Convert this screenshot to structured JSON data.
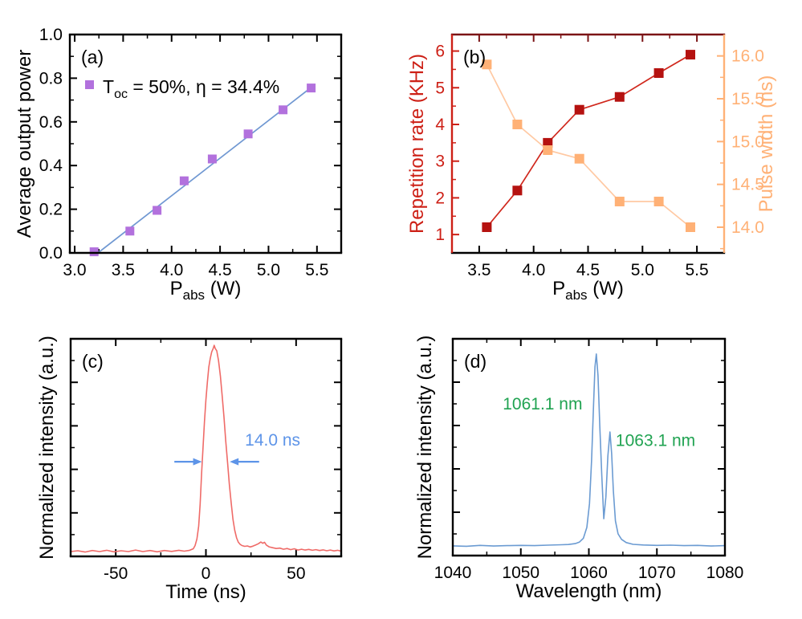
{
  "figure": {
    "background": "#ffffff",
    "description_colors": {
      "purple_marker": "#b271dd",
      "fit_line_blue": "#7098d2",
      "rep_rate_red_line": "#d0271c",
      "rep_rate_red_marker": "#b51210",
      "rep_rate_axis_red": "#cd2016",
      "dark_red_top_spine": "#7b1416",
      "pulse_width_orange_marker": "#ffb176",
      "pulse_width_orange_line": "#ffc9a3",
      "pulse_trace_red": "#ef6b68",
      "spectrum_blue": "#6b9bd2",
      "annotation_blue": "#5d94e8",
      "annotation_green": "#21a352",
      "black": "#000000"
    }
  },
  "chart_data": [
    {
      "id": "a",
      "type": "scatter",
      "panel_label": "(a)",
      "xlabel": {
        "pre": "P",
        "sub": "abs",
        "post": " (W)"
      },
      "ylabel": "Average output power",
      "xlim": [
        2.95,
        5.75
      ],
      "ylim": [
        0.0,
        1.0
      ],
      "xticks": {
        "major": [
          3.0,
          3.5,
          4.0,
          4.5,
          5.0,
          5.5
        ],
        "labels": [
          "3.0",
          "3.5",
          "4.0",
          "4.5",
          "5.0",
          "5.5"
        ],
        "minor": [
          3.25,
          3.75,
          4.25,
          4.75,
          5.25
        ]
      },
      "yticks": {
        "major": [
          0.0,
          0.2,
          0.4,
          0.6,
          0.8,
          1.0
        ],
        "labels": [
          "0.0",
          "0.2",
          "0.4",
          "0.6",
          "0.8",
          "1.0"
        ],
        "minor": [
          0.1,
          0.3,
          0.5,
          0.7,
          0.9
        ]
      },
      "axis_colors": {
        "top": "#000000",
        "bottom": "#000000",
        "left": "#000000",
        "right": "#000000"
      },
      "legend": {
        "pre": "T",
        "sub": "oc",
        "post": " = 50%, η = 34.4%",
        "marker_color": "#b271dd"
      },
      "series": [
        {
          "name": "linear-fit-line",
          "kind": "line",
          "color": "#7098d2",
          "width": 1.7,
          "points": [
            [
              3.24,
              0.0
            ],
            [
              5.47,
              0.768
            ]
          ]
        },
        {
          "name": "output-power-points",
          "kind": "scatter",
          "marker": "square",
          "size": 11,
          "color": "#b271dd",
          "points": [
            [
              3.2,
              0.005
            ],
            [
              3.57,
              0.1
            ],
            [
              3.85,
              0.195
            ],
            [
              4.13,
              0.33
            ],
            [
              4.42,
              0.43
            ],
            [
              4.79,
              0.545
            ],
            [
              5.15,
              0.655
            ],
            [
              5.44,
              0.755
            ]
          ]
        }
      ]
    },
    {
      "id": "b",
      "type": "line",
      "panel_label": "(b)",
      "xlabel": {
        "pre": "P",
        "sub": "abs",
        "post": " (W)"
      },
      "ylabel": "Repetition rate (KHz)",
      "ylabel2": "Pulse width (ns)",
      "xlim": [
        3.25,
        5.75
      ],
      "ylim": [
        0.5,
        6.45
      ],
      "y2lim": [
        13.7,
        16.25
      ],
      "xticks": {
        "major": [
          3.5,
          4.0,
          4.5,
          5.0,
          5.5
        ],
        "labels": [
          "3.5",
          "4.0",
          "4.5",
          "5.0",
          "5.5"
        ],
        "minor": [
          3.75,
          4.25,
          4.75,
          5.25
        ]
      },
      "yticks": {
        "major": [
          1,
          2,
          3,
          4,
          5,
          6
        ],
        "labels": [
          "1",
          "2",
          "3",
          "4",
          "5",
          "6"
        ],
        "minor": [
          1.5,
          2.5,
          3.5,
          4.5,
          5.5
        ]
      },
      "y2ticks": {
        "major": [
          14.0,
          14.5,
          15.0,
          15.5,
          16.0
        ],
        "labels": [
          "14.0",
          "14.5",
          "15.0",
          "15.5",
          "16.0"
        ],
        "minor": [
          13.75,
          14.25,
          14.75,
          15.25,
          15.75
        ]
      },
      "axis_colors": {
        "top": "#7b1416",
        "bottom": "#000000",
        "left": "#cd2016",
        "right": "#ffb176"
      },
      "series": [
        {
          "name": "repetition-rate-series",
          "kind": "line+scatter",
          "axis": "left",
          "color": "#d0271c",
          "marker_color": "#b51210",
          "size": 12,
          "width": 1.7,
          "points": [
            [
              3.57,
              1.2
            ],
            [
              3.85,
              2.2
            ],
            [
              4.13,
              3.5
            ],
            [
              4.42,
              4.4
            ],
            [
              4.79,
              4.75
            ],
            [
              5.15,
              5.4
            ],
            [
              5.44,
              5.9
            ]
          ]
        },
        {
          "name": "pulse-width-series",
          "kind": "line+scatter",
          "axis": "right",
          "color": "#ffc9a3",
          "marker_color": "#ffb176",
          "size": 12,
          "width": 1.7,
          "points": [
            [
              3.57,
              15.9
            ],
            [
              3.85,
              15.2
            ],
            [
              4.13,
              14.9
            ],
            [
              4.42,
              14.8
            ],
            [
              4.79,
              14.3
            ],
            [
              5.15,
              14.3
            ],
            [
              5.44,
              14.0
            ]
          ]
        }
      ]
    },
    {
      "id": "c",
      "type": "line",
      "panel_label": "(c)",
      "xlabel": {
        "pre": "Time (ns)",
        "sub": "",
        "post": ""
      },
      "ylabel": "Normalized intensity (a.u.)",
      "xlim": [
        -75,
        75
      ],
      "ylim": [
        0.0,
        1.0
      ],
      "xticks": {
        "major": [
          -50,
          0,
          50
        ],
        "labels": [
          "-50",
          "0",
          "50"
        ],
        "minor": [
          -25,
          25
        ]
      },
      "yticks": {
        "major": [
          0.2,
          0.4,
          0.6,
          0.8
        ],
        "labels": [],
        "minor": [
          0.1,
          0.3,
          0.5,
          0.7,
          0.9
        ]
      },
      "axis_colors": {
        "top": "#000000",
        "bottom": "#000000",
        "left": "#000000",
        "right": "#000000"
      },
      "series": [
        {
          "name": "pulse-trace",
          "kind": "line",
          "color": "#ef6b68",
          "width": 1.6,
          "points": [
            [
              -75,
              0.022
            ],
            [
              -71,
              0.026
            ],
            [
              -67,
              0.02
            ],
            [
              -63,
              0.027
            ],
            [
              -59,
              0.022
            ],
            [
              -55,
              0.028
            ],
            [
              -51,
              0.021
            ],
            [
              -47,
              0.026
            ],
            [
              -43,
              0.022
            ],
            [
              -39,
              0.029
            ],
            [
              -35,
              0.022
            ],
            [
              -31,
              0.027
            ],
            [
              -27,
              0.021
            ],
            [
              -23,
              0.027
            ],
            [
              -19,
              0.023
            ],
            [
              -15,
              0.028
            ],
            [
              -12,
              0.024
            ],
            [
              -9,
              0.028
            ],
            [
              -7,
              0.035
            ],
            [
              -6,
              0.05
            ],
            [
              -5,
              0.08
            ],
            [
              -4,
              0.14
            ],
            [
              -3.2,
              0.24
            ],
            [
              -2.4,
              0.38
            ],
            [
              -1.6,
              0.5
            ],
            [
              -0.8,
              0.62
            ],
            [
              0,
              0.72
            ],
            [
              0.8,
              0.8
            ],
            [
              1.6,
              0.87
            ],
            [
              2.4,
              0.91
            ],
            [
              3.2,
              0.94
            ],
            [
              4,
              0.955
            ],
            [
              4.6,
              0.97
            ],
            [
              5.2,
              0.955
            ],
            [
              6,
              0.945
            ],
            [
              7,
              0.9
            ],
            [
              8,
              0.83
            ],
            [
              9,
              0.74
            ],
            [
              10,
              0.64
            ],
            [
              11,
              0.53
            ],
            [
              12,
              0.43
            ],
            [
              13,
              0.33
            ],
            [
              14,
              0.245
            ],
            [
              15,
              0.17
            ],
            [
              16,
              0.12
            ],
            [
              17,
              0.085
            ],
            [
              18,
              0.065
            ],
            [
              19,
              0.055
            ],
            [
              20,
              0.05
            ],
            [
              21.5,
              0.046
            ],
            [
              23,
              0.048
            ],
            [
              24.5,
              0.043
            ],
            [
              26,
              0.047
            ],
            [
              27.5,
              0.052
            ],
            [
              29,
              0.058
            ],
            [
              30.5,
              0.066
            ],
            [
              31.5,
              0.06
            ],
            [
              32.5,
              0.065
            ],
            [
              33.5,
              0.052
            ],
            [
              35,
              0.044
            ],
            [
              37,
              0.04
            ],
            [
              39,
              0.036
            ],
            [
              41,
              0.038
            ],
            [
              43,
              0.033
            ],
            [
              45,
              0.036
            ],
            [
              47,
              0.031
            ],
            [
              49,
              0.035
            ],
            [
              51,
              0.029
            ],
            [
              53,
              0.033
            ],
            [
              55,
              0.029
            ],
            [
              57,
              0.032
            ],
            [
              59,
              0.028
            ],
            [
              61,
              0.031
            ],
            [
              63,
              0.027
            ],
            [
              65,
              0.03
            ],
            [
              67,
              0.026
            ],
            [
              69,
              0.029
            ],
            [
              71,
              0.025
            ],
            [
              73,
              0.028
            ],
            [
              75,
              0.024
            ]
          ]
        }
      ],
      "annotations": [
        {
          "kind": "text",
          "name": "annotation-pulse-width",
          "text": "14.0 ns",
          "x": 37,
          "y": 0.51,
          "color": "#5d94e8"
        },
        {
          "kind": "arrow",
          "name": "annotation-arrow-left",
          "x1": -17.5,
          "x2": -2.2,
          "y": 0.435,
          "color": "#5d94e8"
        },
        {
          "kind": "arrow",
          "name": "annotation-arrow-right",
          "x1": 29.5,
          "x2": 13.2,
          "y": 0.435,
          "color": "#5d94e8"
        }
      ]
    },
    {
      "id": "d",
      "type": "line",
      "panel_label": "(d)",
      "xlabel": {
        "pre": "Wavelength (nm)",
        "sub": "",
        "post": ""
      },
      "ylabel": "Normalized intensity (a.u.)",
      "xlim": [
        1040,
        1080
      ],
      "ylim": [
        0.0,
        1.0
      ],
      "xticks": {
        "major": [
          1040,
          1050,
          1060,
          1070,
          1080
        ],
        "labels": [
          "1040",
          "1050",
          "1060",
          "1070",
          "1080"
        ],
        "minor": [
          1045,
          1055,
          1065,
          1075
        ]
      },
      "yticks": {
        "major": [
          0.2,
          0.4,
          0.6,
          0.8
        ],
        "labels": [],
        "minor": [
          0.1,
          0.3,
          0.5,
          0.7,
          0.9
        ]
      },
      "axis_colors": {
        "top": "#000000",
        "bottom": "#000000",
        "left": "#000000",
        "right": "#000000"
      },
      "series": [
        {
          "name": "spectrum-trace",
          "kind": "line",
          "color": "#6b9bd2",
          "width": 1.6,
          "points": [
            [
              1040,
              0.045
            ],
            [
              1042,
              0.043
            ],
            [
              1044,
              0.047
            ],
            [
              1046,
              0.044
            ],
            [
              1048,
              0.046
            ],
            [
              1050,
              0.047
            ],
            [
              1052,
              0.046
            ],
            [
              1054,
              0.048
            ],
            [
              1056,
              0.05
            ],
            [
              1057,
              0.051
            ],
            [
              1058,
              0.055
            ],
            [
              1058.6,
              0.062
            ],
            [
              1059.2,
              0.08
            ],
            [
              1059.7,
              0.13
            ],
            [
              1060.1,
              0.24
            ],
            [
              1060.4,
              0.44
            ],
            [
              1060.7,
              0.7
            ],
            [
              1060.9,
              0.87
            ],
            [
              1061.1,
              0.93
            ],
            [
              1061.35,
              0.83
            ],
            [
              1061.6,
              0.6
            ],
            [
              1061.9,
              0.37
            ],
            [
              1062.2,
              0.17
            ],
            [
              1062.5,
              0.27
            ],
            [
              1062.8,
              0.46
            ],
            [
              1063.1,
              0.57
            ],
            [
              1063.35,
              0.47
            ],
            [
              1063.6,
              0.3
            ],
            [
              1063.9,
              0.16
            ],
            [
              1064.3,
              0.1
            ],
            [
              1064.8,
              0.075
            ],
            [
              1065.5,
              0.06
            ],
            [
              1066.5,
              0.052
            ],
            [
              1068,
              0.049
            ],
            [
              1070,
              0.047
            ],
            [
              1072,
              0.048
            ],
            [
              1074,
              0.046
            ],
            [
              1076,
              0.047
            ],
            [
              1078,
              0.044
            ],
            [
              1080,
              0.046
            ]
          ]
        }
      ],
      "annotations": [
        {
          "kind": "text",
          "name": "annotation-peak-1061",
          "text": "1061.1 nm",
          "x": 1053.2,
          "y": 0.675,
          "color": "#21a352"
        },
        {
          "kind": "text",
          "name": "annotation-peak-1063",
          "text": "1063.1 nm",
          "x": 1069.8,
          "y": 0.505,
          "color": "#21a352"
        }
      ]
    }
  ]
}
